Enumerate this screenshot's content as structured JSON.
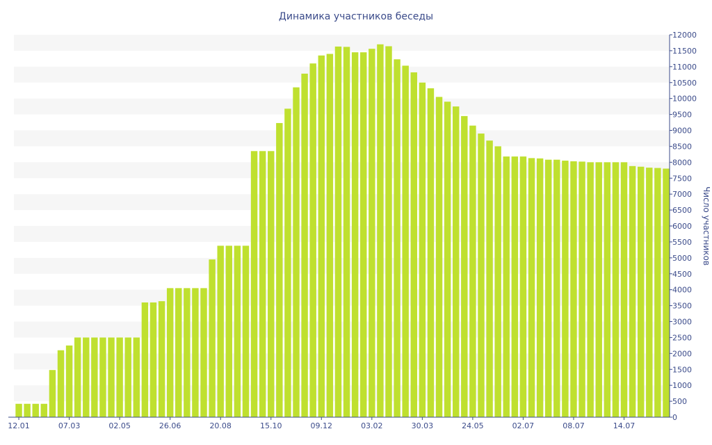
{
  "chart_data": {
    "type": "bar",
    "title": "Динамика участников беседы",
    "xlabel": "",
    "ylabel": "Число участников",
    "ylim": [
      0,
      12000
    ],
    "y_ticks": [
      0,
      500,
      1000,
      1500,
      2000,
      2500,
      3000,
      3500,
      4000,
      4500,
      5000,
      5500,
      6000,
      6500,
      7000,
      7500,
      8000,
      8500,
      9000,
      9500,
      10000,
      10500,
      11000,
      11500,
      12000
    ],
    "x_tick_labels": [
      {
        "label": "12.01",
        "index": 0
      },
      {
        "label": "07.03",
        "index": 6
      },
      {
        "label": "02.05",
        "index": 12
      },
      {
        "label": "26.06",
        "index": 18
      },
      {
        "label": "20.08",
        "index": 24
      },
      {
        "label": "15.10",
        "index": 30
      },
      {
        "label": "09.12",
        "index": 36
      },
      {
        "label": "03.02",
        "index": 42
      },
      {
        "label": "30.03",
        "index": 48
      },
      {
        "label": "24.05",
        "index": 54
      },
      {
        "label": "02.07",
        "index": 60
      },
      {
        "label": "08.07",
        "index": 66
      },
      {
        "label": "14.07",
        "index": 72
      }
    ],
    "values": [
      420,
      420,
      420,
      420,
      1480,
      2100,
      2250,
      2500,
      2500,
      2500,
      2500,
      2500,
      2500,
      2500,
      2500,
      3600,
      3600,
      3640,
      4050,
      4050,
      4050,
      4050,
      4050,
      4950,
      5380,
      5380,
      5380,
      5380,
      8350,
      8350,
      8350,
      9230,
      9680,
      10350,
      10780,
      11100,
      11350,
      11400,
      11630,
      11620,
      11450,
      11450,
      11560,
      11700,
      11640,
      11230,
      11030,
      10820,
      10500,
      10320,
      10050,
      9900,
      9750,
      9450,
      9150,
      8900,
      8680,
      8500,
      8180,
      8180,
      8180,
      8130,
      8120,
      8080,
      8080,
      8050,
      8030,
      8020,
      8000,
      8000,
      8000,
      8000,
      8000,
      7880,
      7860,
      7830,
      7820,
      7800
    ],
    "bar_color": "#bfe02f",
    "band_color": "#f6f6f6",
    "text_color": "#3b4b8a",
    "axis_color": "#3b4b8a",
    "grid": "alternating-bands",
    "legend": "none"
  }
}
